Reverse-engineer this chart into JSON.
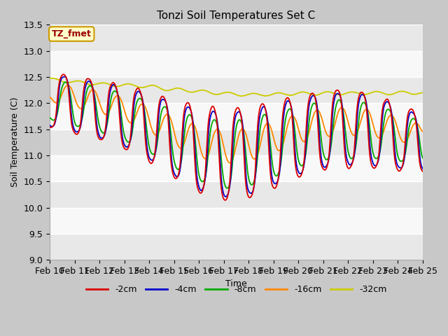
{
  "title": "Tonzi Soil Temperatures Set C",
  "xlabel": "Time",
  "ylabel": "Soil Temperature (C)",
  "ylim": [
    9.0,
    13.5
  ],
  "annotation_text": "TZ_fmet",
  "annotation_bg": "#ffffcc",
  "annotation_border": "#cc9900",
  "annotation_text_color": "#990000",
  "series_colors": {
    "-2cm": "#dd0000",
    "-4cm": "#0000cc",
    "-8cm": "#00aa00",
    "-16cm": "#ff8800",
    "-32cm": "#cccc00"
  },
  "xtick_labels": [
    "Feb 10",
    "Feb 11",
    "Feb 12",
    "Feb 13",
    "Feb 14",
    "Feb 15",
    "Feb 16",
    "Feb 17",
    "Feb 18",
    "Feb 19",
    "Feb 20",
    "Feb 21",
    "Feb 22",
    "Feb 23",
    "Feb 24",
    "Feb 25"
  ],
  "line_width": 1.3,
  "font_size": 9,
  "title_fontsize": 11
}
